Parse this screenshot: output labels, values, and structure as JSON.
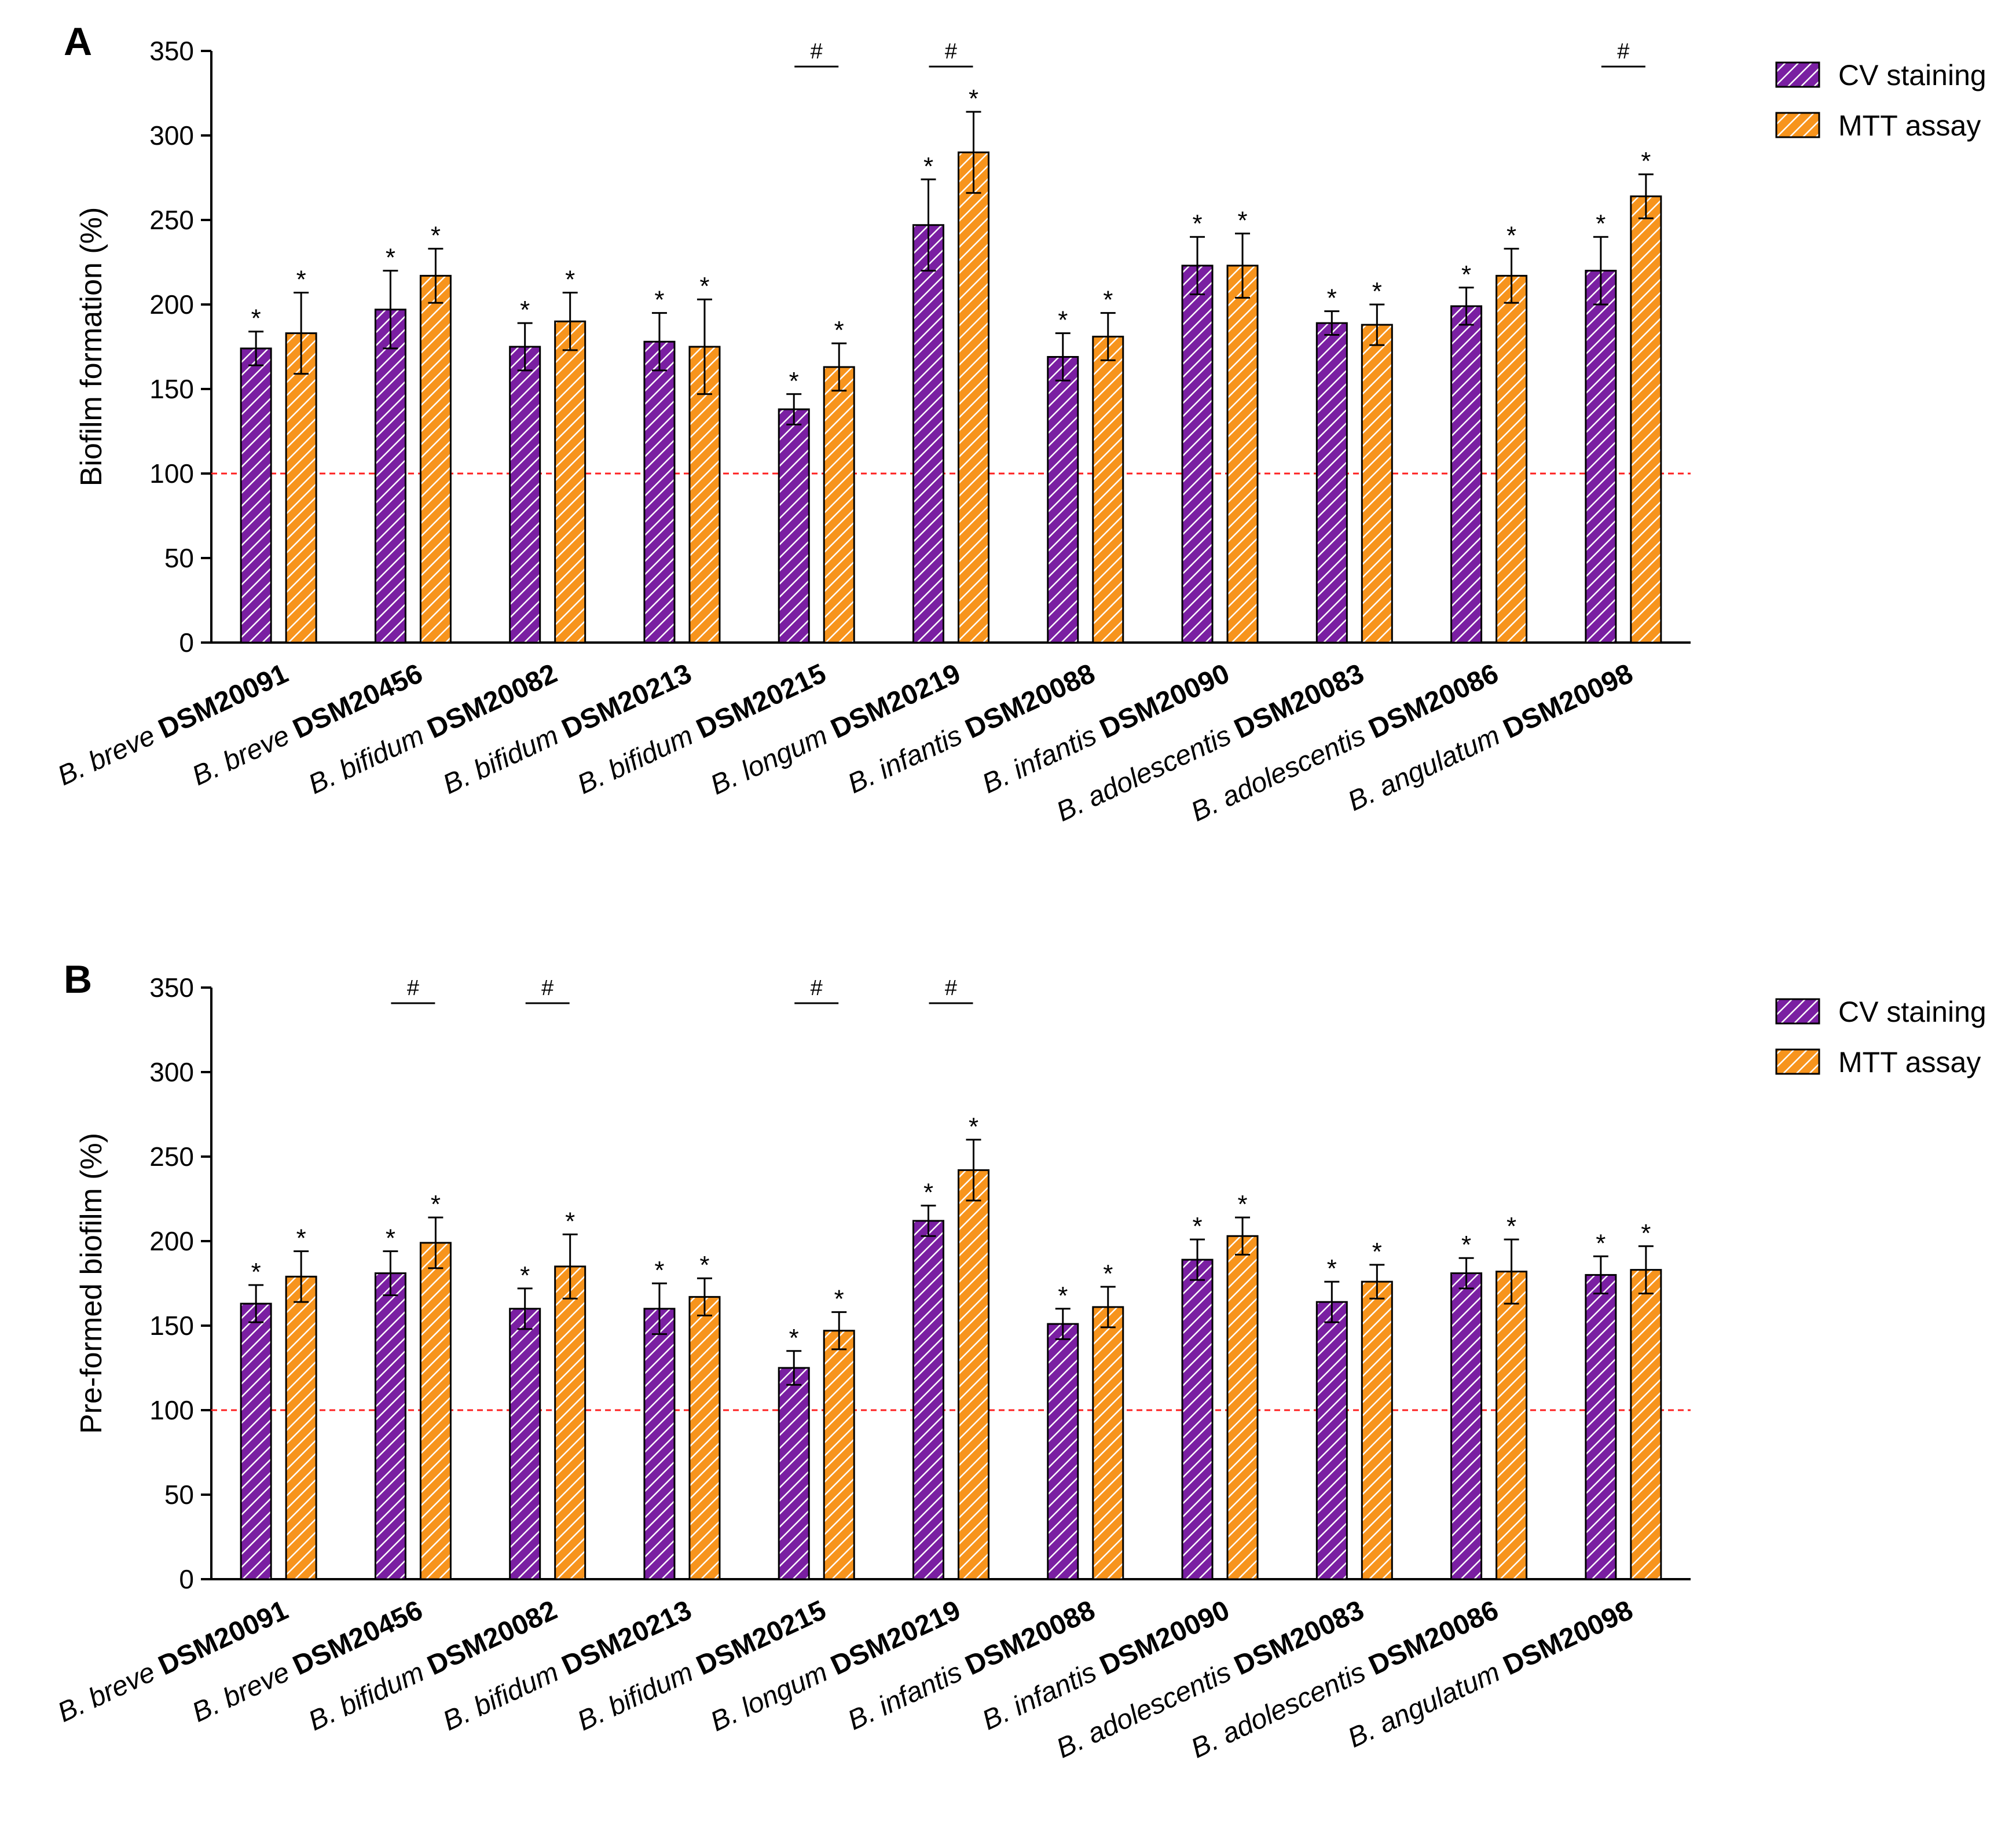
{
  "chart_data": [
    {
      "type": "bar",
      "panel_label": "A",
      "ylabel": "Biofilm formation (%)",
      "ylim": [
        0,
        350
      ],
      "yticks": [
        "0",
        "50",
        "100",
        "150",
        "200",
        "250",
        "300",
        "350"
      ],
      "reference_line": 100,
      "categories": [
        {
          "species": "B. breve",
          "strain": "DSM20091"
        },
        {
          "species": "B. breve",
          "strain": "DSM20456"
        },
        {
          "species": "B. bifidum",
          "strain": "DSM20082"
        },
        {
          "species": "B. bifidum",
          "strain": "DSM20213"
        },
        {
          "species": "B. bifidum",
          "strain": "DSM20215"
        },
        {
          "species": "B. longum",
          "strain": "DSM20219"
        },
        {
          "species": "B. infantis",
          "strain": "DSM20088"
        },
        {
          "species": "B. infantis",
          "strain": "DSM20090"
        },
        {
          "species": "B. adolescentis",
          "strain": "DSM20083"
        },
        {
          "species": "B. adolescentis",
          "strain": "DSM20086"
        },
        {
          "species": "B. angulatum",
          "strain": "DSM20098"
        }
      ],
      "series": [
        {
          "name": "CV staining",
          "color": "#7a1fa2",
          "values": [
            174,
            197,
            175,
            178,
            138,
            247,
            169,
            223,
            189,
            199,
            220
          ],
          "errors": [
            10,
            23,
            14,
            17,
            9,
            27,
            14,
            17,
            7,
            11,
            20
          ],
          "significance": [
            "*",
            "*",
            "*",
            "*",
            "*",
            "*",
            "*",
            "*",
            "*",
            "*",
            "*"
          ]
        },
        {
          "name": "MTT assay",
          "color": "#f7941d",
          "values": [
            183,
            217,
            190,
            175,
            163,
            290,
            181,
            223,
            188,
            217,
            264
          ],
          "errors": [
            24,
            16,
            17,
            28,
            14,
            24,
            14,
            19,
            12,
            16,
            13
          ],
          "significance": [
            "*",
            "*",
            "*",
            "*",
            "*",
            "*",
            "*",
            "*",
            "*",
            "*",
            "*"
          ]
        }
      ],
      "hash_groups": [
        4,
        5,
        10
      ],
      "hash_symbol": "#",
      "legend": {
        "position": "top-right",
        "entries": [
          "CV staining",
          "MTT assay"
        ]
      }
    },
    {
      "type": "bar",
      "panel_label": "B",
      "ylabel": "Pre-formed biofilm (%)",
      "ylim": [
        0,
        350
      ],
      "yticks": [
        "0",
        "50",
        "100",
        "150",
        "200",
        "250",
        "300",
        "350"
      ],
      "reference_line": 100,
      "categories": [
        {
          "species": "B. breve",
          "strain": "DSM20091"
        },
        {
          "species": "B. breve",
          "strain": "DSM20456"
        },
        {
          "species": "B. bifidum",
          "strain": "DSM20082"
        },
        {
          "species": "B. bifidum",
          "strain": "DSM20213"
        },
        {
          "species": "B. bifidum",
          "strain": "DSM20215"
        },
        {
          "species": "B. longum",
          "strain": "DSM20219"
        },
        {
          "species": "B. infantis",
          "strain": "DSM20088"
        },
        {
          "species": "B. infantis",
          "strain": "DSM20090"
        },
        {
          "species": "B. adolescentis",
          "strain": "DSM20083"
        },
        {
          "species": "B. adolescentis",
          "strain": "DSM20086"
        },
        {
          "species": "B. angulatum",
          "strain": "DSM20098"
        }
      ],
      "series": [
        {
          "name": "CV staining",
          "color": "#7a1fa2",
          "values": [
            163,
            181,
            160,
            160,
            125,
            212,
            151,
            189,
            164,
            181,
            180
          ],
          "errors": [
            11,
            13,
            12,
            15,
            10,
            9,
            9,
            12,
            12,
            9,
            11
          ],
          "significance": [
            "*",
            "*",
            "*",
            "*",
            "*",
            "*",
            "*",
            "*",
            "*",
            "*",
            "*"
          ]
        },
        {
          "name": "MTT assay",
          "color": "#f7941d",
          "values": [
            179,
            199,
            185,
            167,
            147,
            242,
            161,
            203,
            176,
            182,
            183
          ],
          "errors": [
            15,
            15,
            19,
            11,
            11,
            18,
            12,
            11,
            10,
            19,
            14
          ],
          "significance": [
            "*",
            "*",
            "*",
            "*",
            "*",
            "*",
            "*",
            "*",
            "*",
            "*",
            "*"
          ]
        }
      ],
      "hash_groups": [
        1,
        2,
        4,
        5
      ],
      "hash_symbol": "#",
      "legend": {
        "position": "top-right",
        "entries": [
          "CV staining",
          "MTT assay"
        ]
      }
    }
  ]
}
